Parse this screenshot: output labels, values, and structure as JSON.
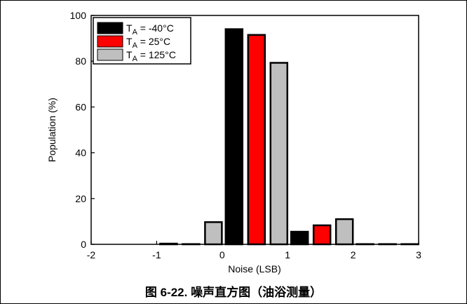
{
  "chart_data": {
    "type": "bar",
    "xlabel": "Noise (LSB)",
    "ylabel": "Population (%)",
    "xlim": [
      -2,
      3
    ],
    "ylim": [
      0,
      100
    ],
    "xticks": [
      "-2",
      "-1",
      "0",
      "1",
      "2",
      "3"
    ],
    "yticks": [
      "0",
      "20",
      "40",
      "60",
      "80",
      "100"
    ],
    "legend_position": "top-left",
    "series": [
      {
        "name": "T_A = -40°C",
        "name_main": "T",
        "name_sub": "A",
        "name_tail": " = -40°C",
        "color": "#000000",
        "x": [
          -1,
          0,
          1,
          2
        ],
        "values": [
          0.3,
          94.0,
          5.5,
          0.1
        ]
      },
      {
        "name": "T_A = 25°C",
        "name_main": "T",
        "name_sub": "A",
        "name_tail": " = 25°C",
        "color": "#ff0000",
        "x": [
          -1,
          0,
          1,
          2
        ],
        "values": [
          0.1,
          91.5,
          8.3,
          0.1
        ]
      },
      {
        "name": "T_A = 125°C",
        "name_main": "T",
        "name_sub": "A",
        "name_tail": " = 125°C",
        "color": "#bfbfbf",
        "x": [
          -1,
          0,
          1,
          2
        ],
        "values": [
          9.7,
          79.3,
          11.0,
          0.1
        ]
      }
    ]
  },
  "caption": "图 6-22. 噪声直方图（油浴测量）"
}
